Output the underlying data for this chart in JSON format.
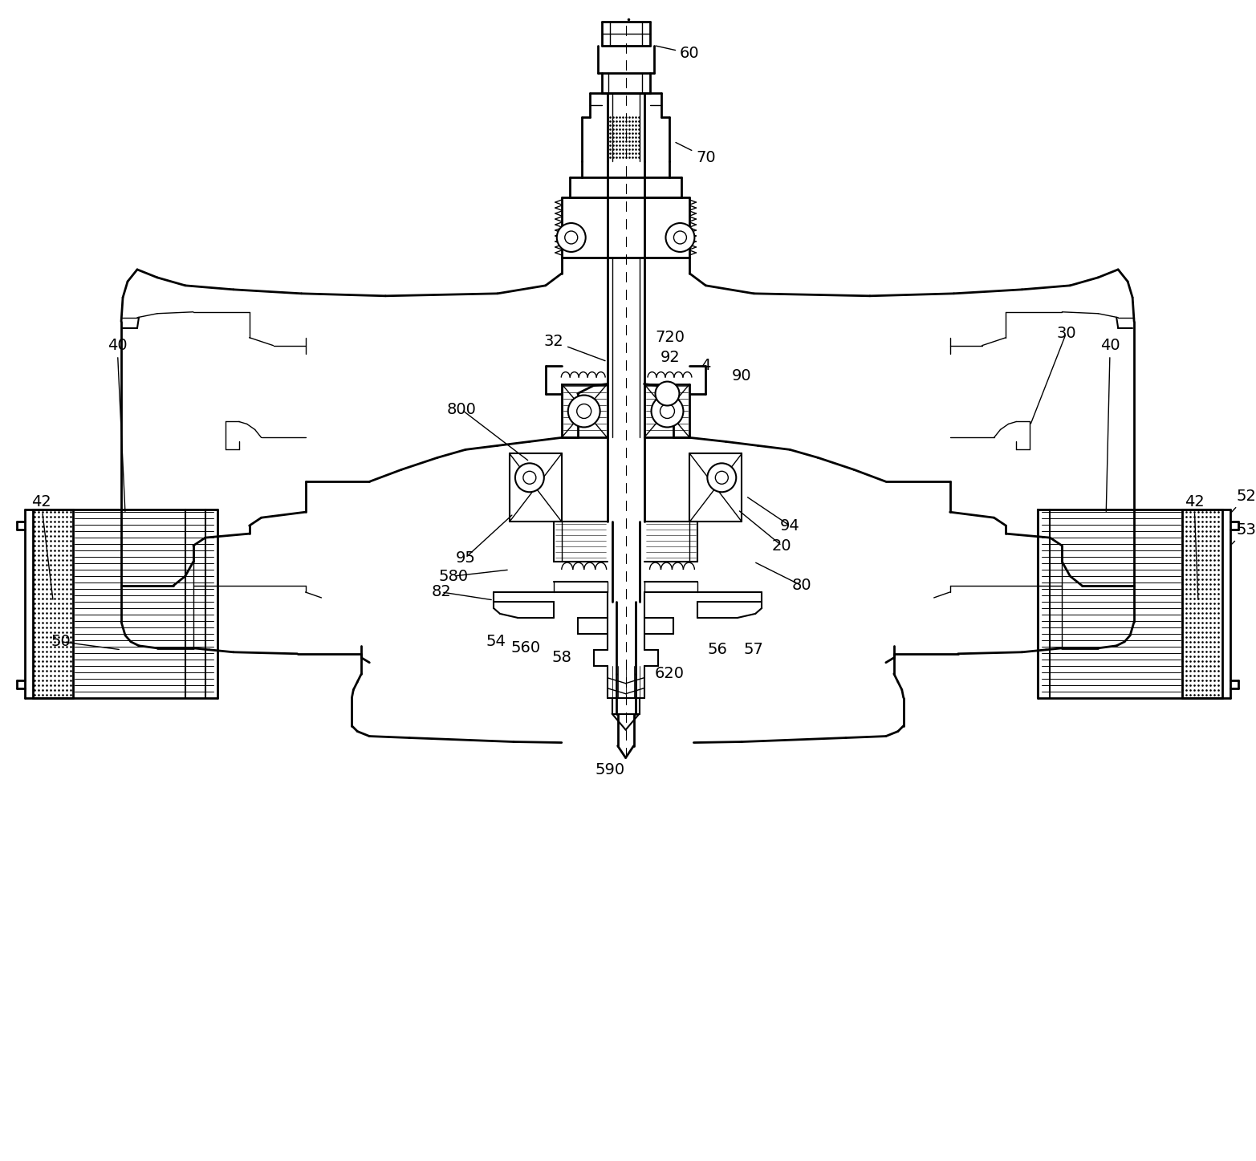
{
  "fig_width": 15.65,
  "fig_height": 14.47,
  "bg_color": "#ffffff",
  "line_color": "#000000",
  "dpi": 100
}
